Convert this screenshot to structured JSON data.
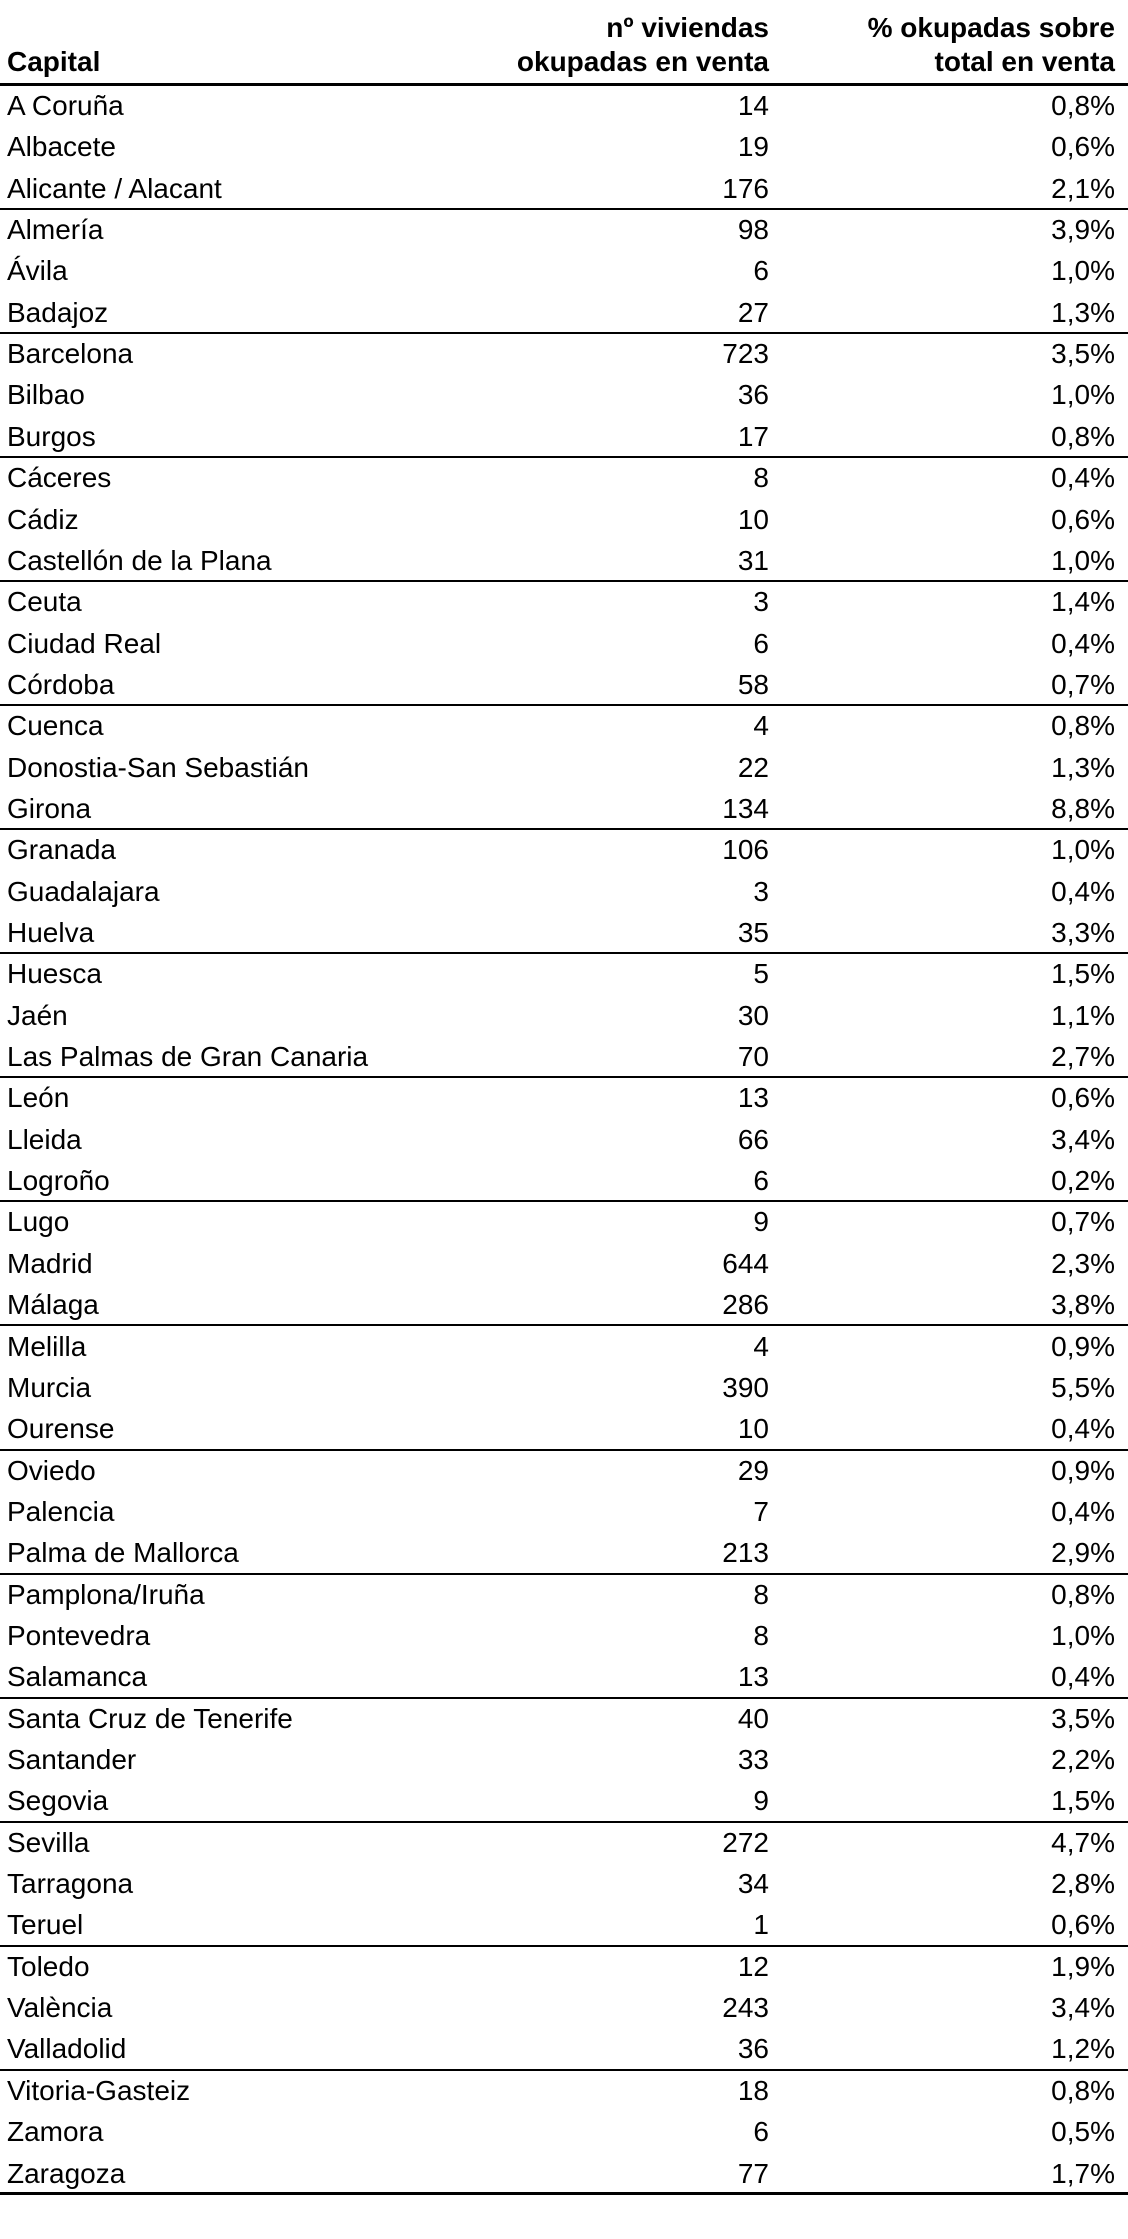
{
  "table": {
    "columns": [
      [
        "Capital"
      ],
      [
        "nº viviendas",
        "okupadas en venta"
      ],
      [
        "% okupadas sobre",
        "total en venta"
      ]
    ],
    "rows": [
      [
        "A Coruña",
        "14",
        "0,8%"
      ],
      [
        "Albacete",
        "19",
        "0,6%"
      ],
      [
        "Alicante / Alacant",
        "176",
        "2,1%"
      ],
      [
        "Almería",
        "98",
        "3,9%"
      ],
      [
        "Ávila",
        "6",
        "1,0%"
      ],
      [
        "Badajoz",
        "27",
        "1,3%"
      ],
      [
        "Barcelona",
        "723",
        "3,5%"
      ],
      [
        "Bilbao",
        "36",
        "1,0%"
      ],
      [
        "Burgos",
        "17",
        "0,8%"
      ],
      [
        "Cáceres",
        "8",
        "0,4%"
      ],
      [
        "Cádiz",
        "10",
        "0,6%"
      ],
      [
        "Castellón de la Plana",
        "31",
        "1,0%"
      ],
      [
        "Ceuta",
        "3",
        "1,4%"
      ],
      [
        "Ciudad Real",
        "6",
        "0,4%"
      ],
      [
        "Córdoba",
        "58",
        "0,7%"
      ],
      [
        "Cuenca",
        "4",
        "0,8%"
      ],
      [
        "Donostia-San Sebastián",
        "22",
        "1,3%"
      ],
      [
        "Girona",
        "134",
        "8,8%"
      ],
      [
        "Granada",
        "106",
        "1,0%"
      ],
      [
        "Guadalajara",
        "3",
        "0,4%"
      ],
      [
        "Huelva",
        "35",
        "3,3%"
      ],
      [
        "Huesca",
        "5",
        "1,5%"
      ],
      [
        "Jaén",
        "30",
        "1,1%"
      ],
      [
        "Las Palmas de Gran Canaria",
        "70",
        "2,7%"
      ],
      [
        "León",
        "13",
        "0,6%"
      ],
      [
        "Lleida",
        "66",
        "3,4%"
      ],
      [
        "Logroño",
        "6",
        "0,2%"
      ],
      [
        "Lugo",
        "9",
        "0,7%"
      ],
      [
        "Madrid",
        "644",
        "2,3%"
      ],
      [
        "Málaga",
        "286",
        "3,8%"
      ],
      [
        "Melilla",
        "4",
        "0,9%"
      ],
      [
        "Murcia",
        "390",
        "5,5%"
      ],
      [
        "Ourense",
        "10",
        "0,4%"
      ],
      [
        "Oviedo",
        "29",
        "0,9%"
      ],
      [
        "Palencia",
        "7",
        "0,4%"
      ],
      [
        "Palma de Mallorca",
        "213",
        "2,9%"
      ],
      [
        "Pamplona/Iruña",
        "8",
        "0,8%"
      ],
      [
        "Pontevedra",
        "8",
        "1,0%"
      ],
      [
        "Salamanca",
        "13",
        "0,4%"
      ],
      [
        "Santa Cruz de Tenerife",
        "40",
        "3,5%"
      ],
      [
        "Santander",
        "33",
        "2,2%"
      ],
      [
        "Segovia",
        "9",
        "1,5%"
      ],
      [
        "Sevilla",
        "272",
        "4,7%"
      ],
      [
        "Tarragona",
        "34",
        "2,8%"
      ],
      [
        "Teruel",
        "1",
        "0,6%"
      ],
      [
        "Toledo",
        "12",
        "1,9%"
      ],
      [
        "València",
        "243",
        "3,4%"
      ],
      [
        "Valladolid",
        "36",
        "1,2%"
      ],
      [
        "Vitoria-Gasteiz",
        "18",
        "0,8%"
      ],
      [
        "Zamora",
        "6",
        "0,5%"
      ],
      [
        "Zaragoza",
        "77",
        "1,7%"
      ]
    ]
  }
}
